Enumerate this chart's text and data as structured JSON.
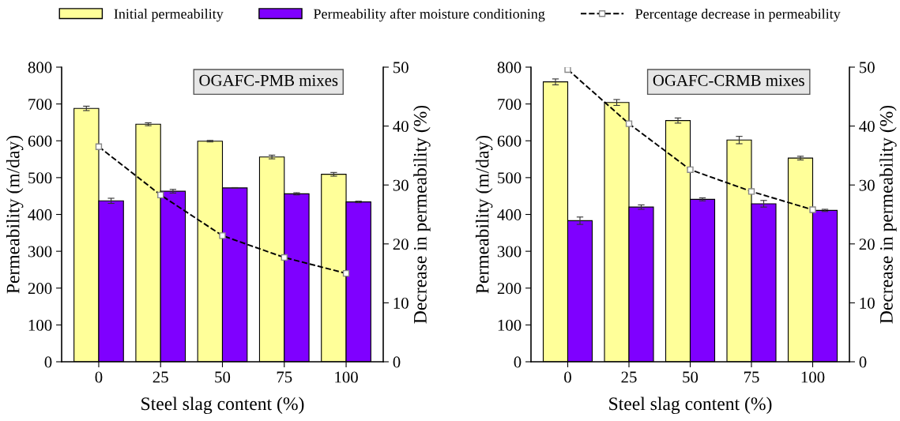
{
  "chart_data": [
    {
      "type": "bar",
      "categories": [
        "0",
        "25",
        "50",
        "75",
        "100"
      ],
      "xlabel": "Steel slag content (%)",
      "ylabel": "Permeability (m/day)",
      "y2label": "Decrease in permeability (%)",
      "series": [
        {
          "name": "Initial permeability",
          "color": "#ffff99",
          "values": [
            688,
            645,
            599,
            556,
            509
          ],
          "errors": [
            6,
            4,
            2,
            5,
            5
          ]
        },
        {
          "name": "Permeability after moisture conditioning",
          "color": "#7f00ff",
          "values": [
            437,
            463,
            472,
            456,
            434
          ],
          "errors": [
            7,
            5,
            1,
            3,
            2
          ]
        },
        {
          "name": "Percentage decrease in permeability",
          "type": "line",
          "axis": "y2",
          "color": "#000000",
          "line_style": "dashed",
          "marker": "square",
          "values": [
            36.5,
            28.3,
            21.4,
            17.7,
            15.0
          ]
        }
      ],
      "ylim": [
        0,
        800
      ],
      "yticks": [
        0,
        100,
        200,
        300,
        400,
        500,
        600,
        700,
        800
      ],
      "y2lim": [
        0,
        50
      ],
      "y2ticks": [
        0,
        10,
        20,
        30,
        40,
        50
      ],
      "annotations": [
        "OGAFC-PMB mixes"
      ],
      "legend": "top",
      "grid": false
    },
    {
      "type": "bar",
      "categories": [
        "0",
        "25",
        "50",
        "75",
        "100"
      ],
      "xlabel": "Steel slag content (%)",
      "ylabel": "Permeability (m/day)",
      "y2label": "Decrease in permeability (%)",
      "series": [
        {
          "color": "#ffff99",
          "values": [
            760,
            704,
            655,
            602,
            553
          ],
          "errors": [
            8,
            8,
            7,
            10,
            5
          ]
        },
        {
          "color": "#7f00ff",
          "values": [
            383,
            420,
            441,
            429,
            411
          ],
          "errors": [
            10,
            6,
            4,
            9,
            3
          ]
        },
        {
          "type": "line",
          "axis": "y2",
          "color": "#000000",
          "line_style": "dashed",
          "marker": "square",
          "values": [
            49.6,
            40.4,
            32.6,
            28.9,
            25.8
          ]
        }
      ],
      "ylim": [
        0,
        800
      ],
      "yticks": [
        0,
        100,
        200,
        300,
        400,
        500,
        600,
        700,
        800
      ],
      "y2lim": [
        0,
        50
      ],
      "y2ticks": [
        0,
        10,
        20,
        30,
        40,
        50
      ],
      "annotations": [
        "OGAFC-CRMB mixes"
      ],
      "grid": false
    }
  ]
}
